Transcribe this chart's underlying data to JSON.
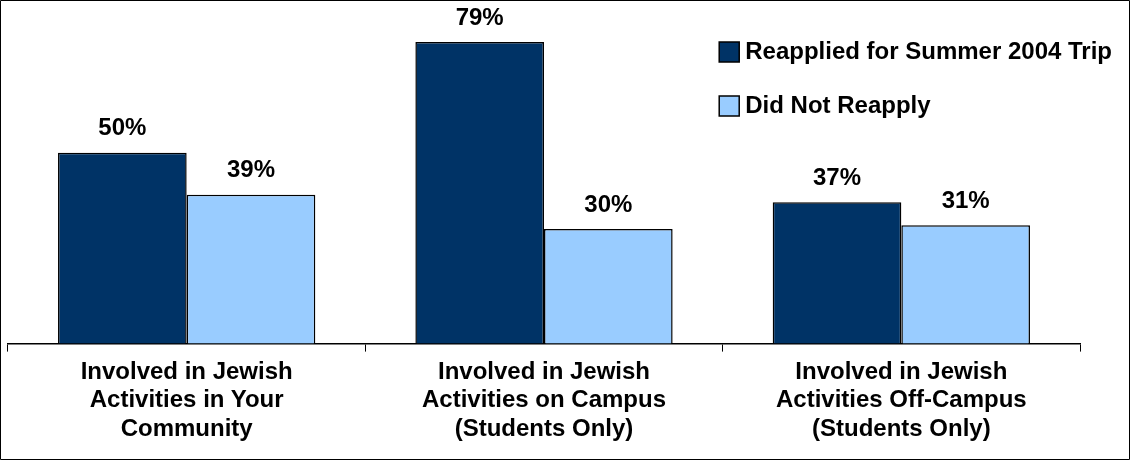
{
  "chart_data": {
    "type": "bar",
    "categories": [
      "Involved in Jewish Activities in Your Community",
      "Involved in Jewish Activities on Campus (Students Only)",
      "Involved in Jewish Activities Off-Campus (Students Only)"
    ],
    "series": [
      {
        "name": "Reapplied for Summer 2004 Trip",
        "color": "#003366",
        "values": [
          50,
          79,
          37
        ],
        "value_labels": [
          "50%",
          "79%",
          "37%"
        ]
      },
      {
        "name": "Did Not Reapply",
        "color": "#99ccff",
        "values": [
          39,
          30,
          31
        ],
        "value_labels": [
          "39%",
          "30%",
          "31%"
        ]
      }
    ],
    "tick_labels": "x",
    "legend": "top right"
  }
}
